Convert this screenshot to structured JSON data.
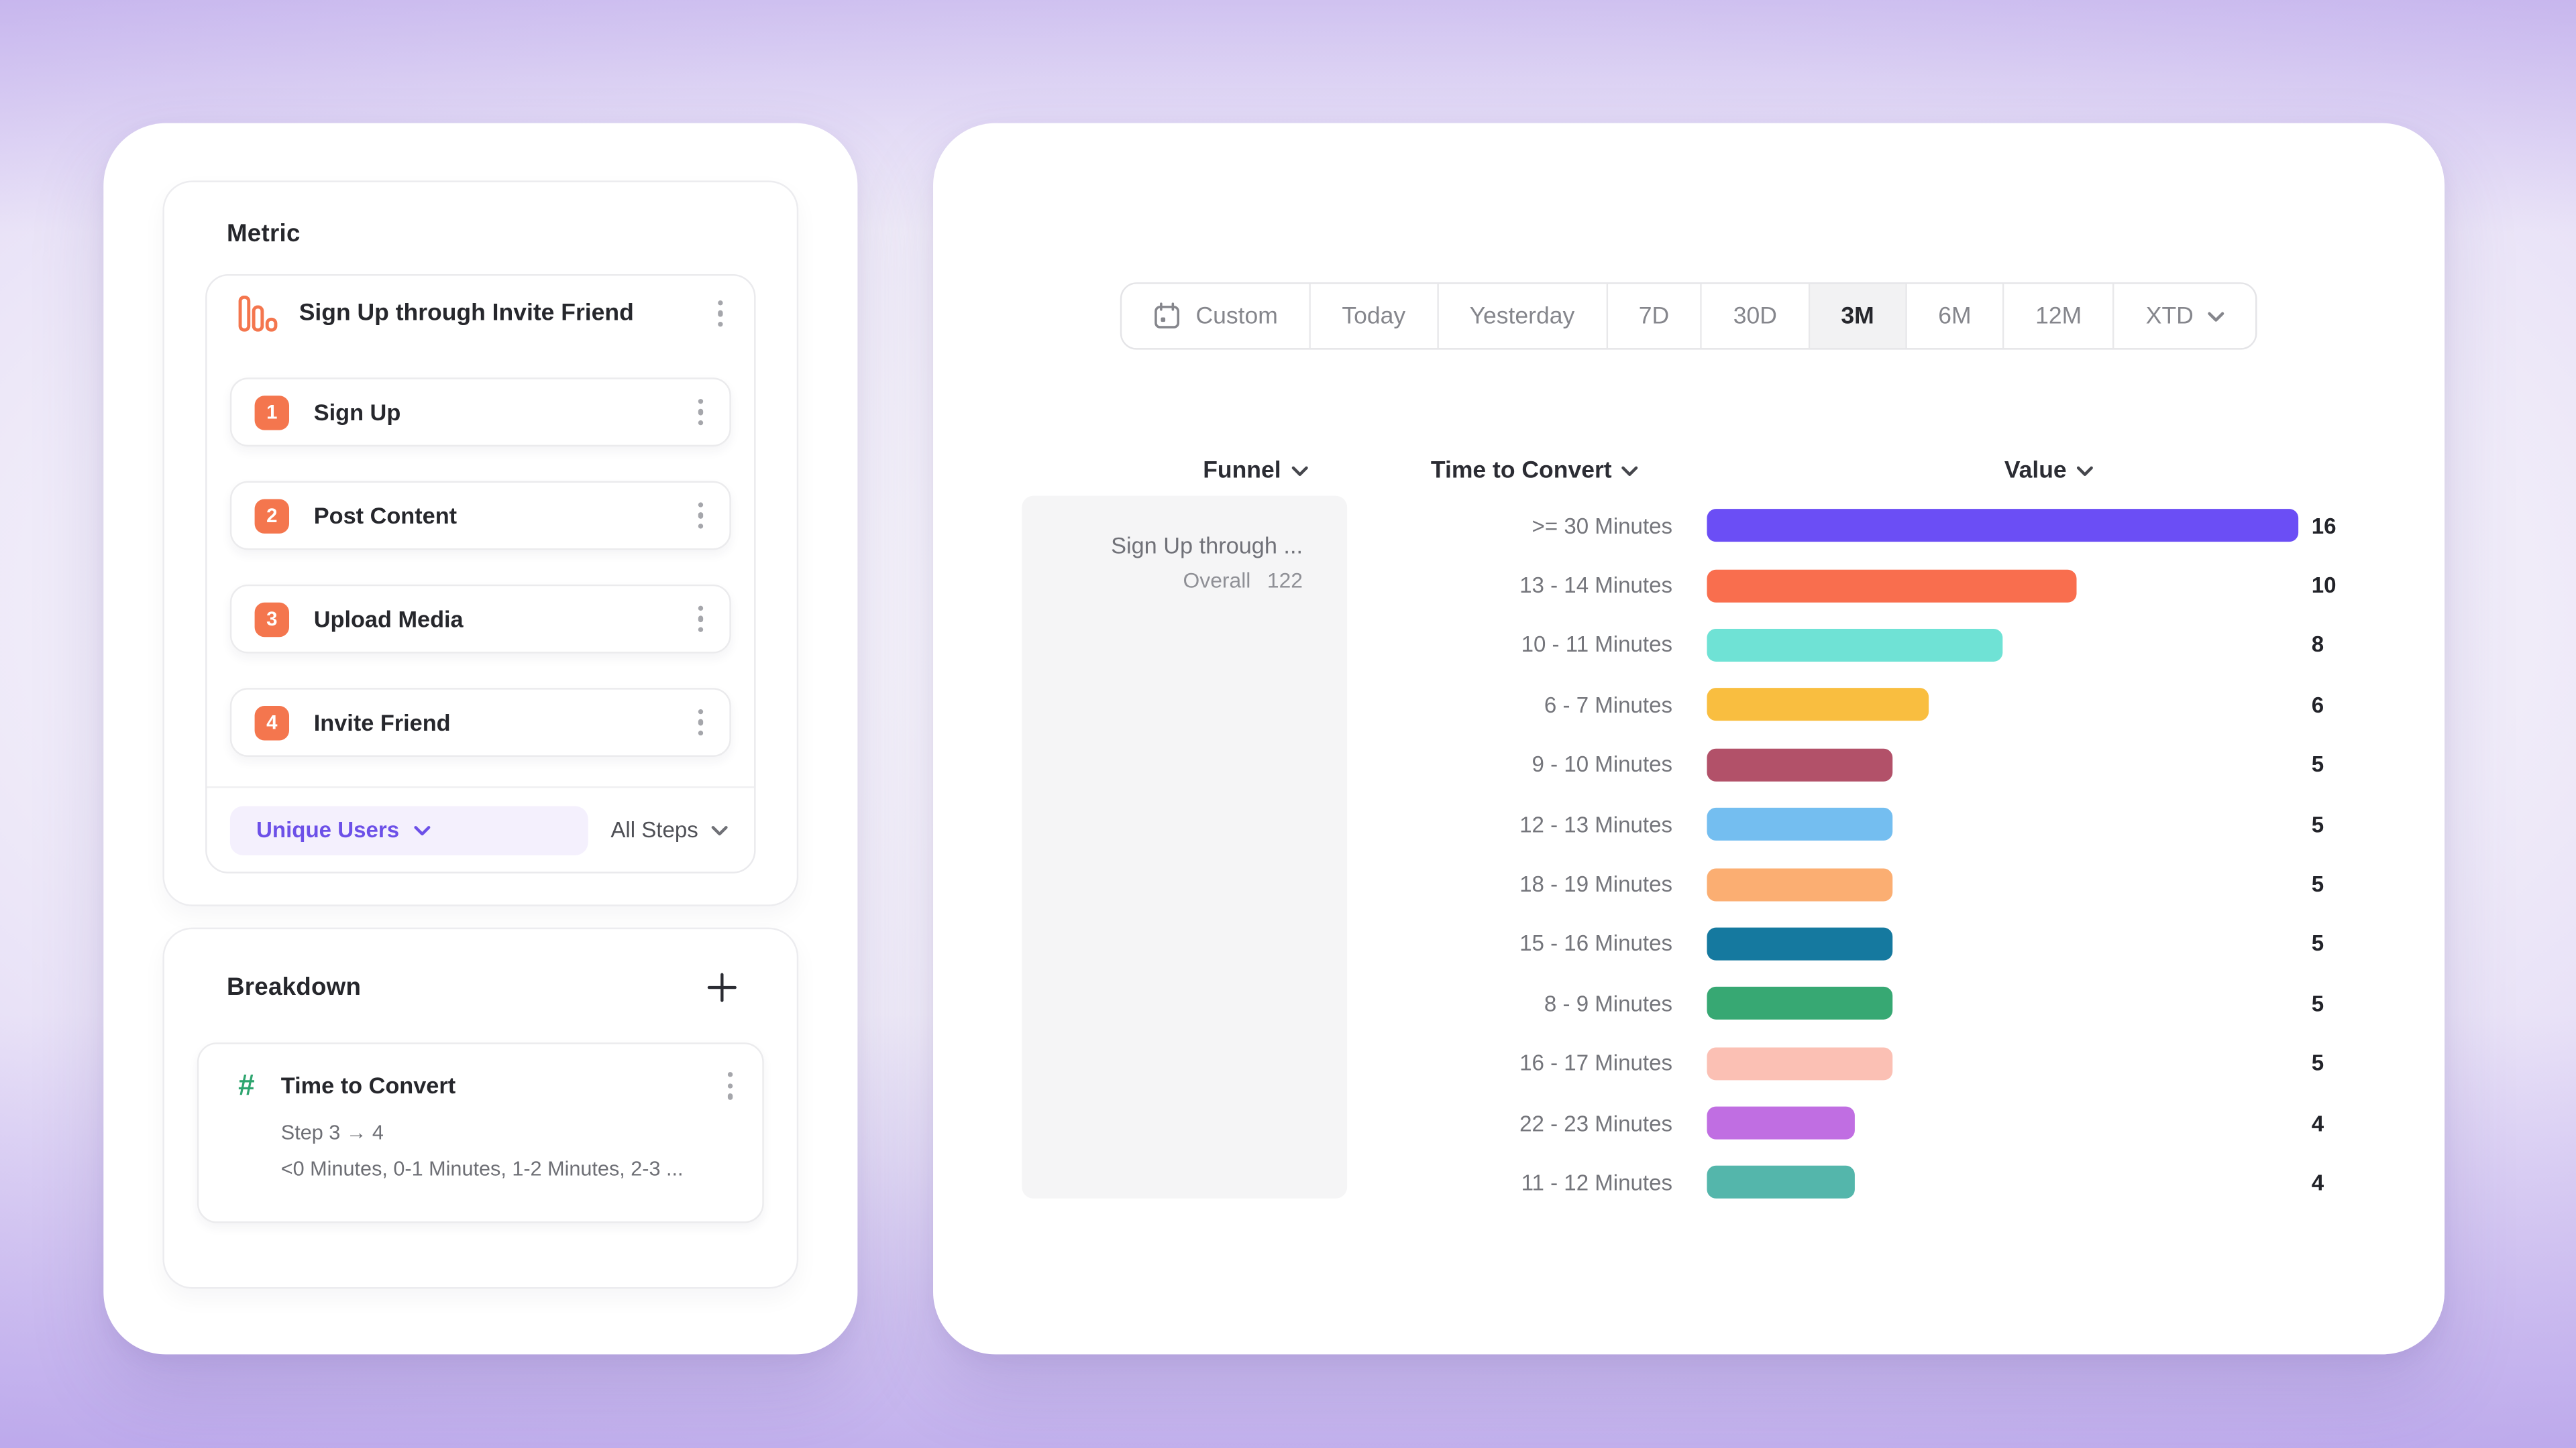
{
  "colors": {
    "accent_purple": "#6C50E8",
    "step_badge_orange": "#F4764E",
    "hash_green": "#2EA56F",
    "selected_tab_bg": "#F2F2F3",
    "funnel_cell_bg": "#F5F5F6"
  },
  "metric_panel": {
    "title": "Metric",
    "funnel": {
      "name": "Sign Up through Invite Friend",
      "steps": [
        {
          "number": "1",
          "label": "Sign Up"
        },
        {
          "number": "2",
          "label": "Post Content"
        },
        {
          "number": "3",
          "label": "Upload Media"
        },
        {
          "number": "4",
          "label": "Invite Friend"
        }
      ],
      "measure": "Unique Users",
      "steps_filter": "All Steps"
    }
  },
  "breakdown_panel": {
    "title": "Breakdown",
    "property": {
      "name": "Time to Convert",
      "step_range": "Step 3 → 4",
      "buckets_preview": "<0 Minutes, 0-1 Minutes, 1-2 Minutes, 2-3 ..."
    }
  },
  "report_panel": {
    "date_tabs": [
      {
        "label": "Custom",
        "icon": "calendar",
        "selected": false
      },
      {
        "label": "Today",
        "selected": false
      },
      {
        "label": "Yesterday",
        "selected": false
      },
      {
        "label": "7D",
        "selected": false
      },
      {
        "label": "30D",
        "selected": false
      },
      {
        "label": "3M",
        "selected": true
      },
      {
        "label": "6M",
        "selected": false
      },
      {
        "label": "12M",
        "selected": false
      },
      {
        "label": "XTD",
        "chevron": true,
        "selected": false
      }
    ],
    "column_headers": {
      "funnel": "Funnel",
      "breakdown": "Time to Convert",
      "value": "Value"
    },
    "funnel_cell": {
      "name": "Sign Up through ...",
      "overall_label": "Overall",
      "overall_value": "122"
    }
  },
  "chart_data": {
    "type": "bar",
    "orientation": "horizontal",
    "categories": [
      ">= 30 Minutes",
      "13 - 14 Minutes",
      "10 - 11 Minutes",
      "6 - 7 Minutes",
      "9 - 10 Minutes",
      "12 - 13 Minutes",
      "18 - 19 Minutes",
      "15 - 16 Minutes",
      "8 - 9 Minutes",
      "16 - 17 Minutes",
      "22 - 23 Minutes",
      "11 - 12 Minutes"
    ],
    "values": [
      16,
      10,
      8,
      6,
      5,
      5,
      5,
      5,
      5,
      5,
      4,
      4
    ],
    "colors": [
      "#6B4EF5",
      "#F96E4E",
      "#6FE2D5",
      "#F9BE40",
      "#B25169",
      "#74BEF0",
      "#FBAE72",
      "#15799F",
      "#37A873",
      "#FBC0B4",
      "#C06EE2",
      "#54B6AB"
    ],
    "striped_index": 2,
    "xlim": [
      0,
      16
    ],
    "value_labels": true,
    "grid": false,
    "legend": false
  }
}
